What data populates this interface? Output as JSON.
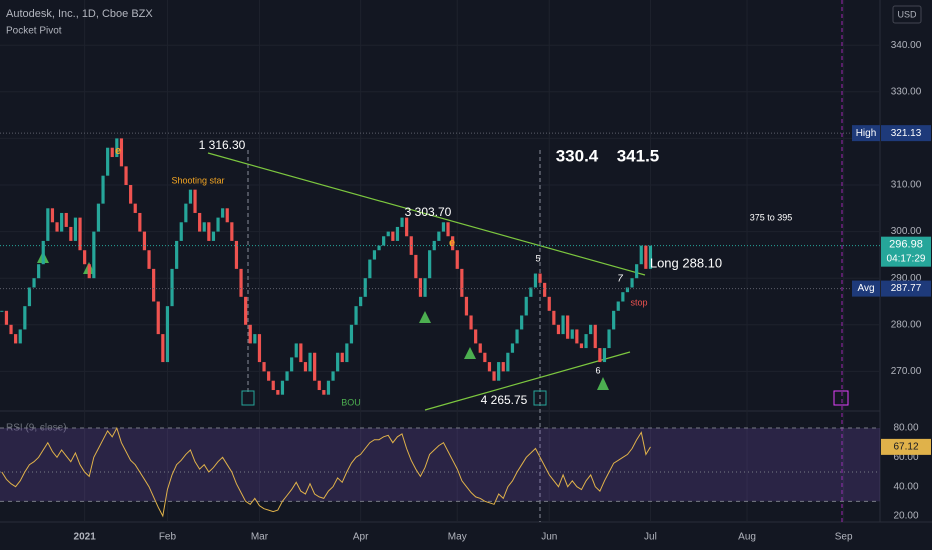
{
  "chart_data": [
    {
      "type": "candlestick",
      "title": "Autodesk, Inc., 1D, Cboe BZX",
      "subtitle": "Pocket Pivot",
      "currency": "USD",
      "close": [
        283,
        280,
        278,
        276,
        279,
        284,
        288,
        290,
        293,
        298,
        305,
        302,
        300,
        304,
        301,
        298,
        303,
        296,
        293,
        290,
        300,
        306,
        312,
        318,
        316,
        320,
        314,
        310,
        306,
        304,
        300,
        296,
        292,
        285,
        278,
        272,
        284,
        292,
        298,
        302,
        306,
        309,
        304,
        300,
        302,
        298,
        300,
        303,
        305,
        302,
        298,
        292,
        286,
        280,
        276,
        278,
        272,
        270,
        268,
        266,
        265,
        268,
        270,
        273,
        276,
        272,
        270,
        274,
        268,
        266,
        265,
        268,
        270,
        274,
        272,
        276,
        280,
        284,
        286,
        290,
        294,
        296,
        297,
        299,
        300,
        298,
        301,
        303,
        299,
        295,
        290,
        286,
        290,
        296,
        298,
        300,
        302,
        299,
        296,
        292,
        286,
        282,
        279,
        276,
        274,
        272,
        270,
        268,
        272,
        270,
        274,
        276,
        279,
        282,
        286,
        288,
        291,
        289,
        286,
        283,
        280,
        278,
        282,
        277,
        279,
        276,
        275,
        278,
        280,
        275,
        272,
        275,
        279,
        283,
        285,
        287,
        288,
        290,
        293,
        297,
        292,
        296.98
      ],
      "up_color": "#26a69a",
      "down_color": "#ef5350",
      "xlim": [
        -0.4,
        190.9
      ],
      "xticks": [
        {
          "value": 18,
          "label": "2021"
        },
        {
          "value": 36,
          "label": "Feb"
        },
        {
          "value": 56,
          "label": "Mar"
        },
        {
          "value": 78,
          "label": "Apr"
        },
        {
          "value": 99,
          "label": "May"
        },
        {
          "value": 119,
          "label": "Jun"
        },
        {
          "value": 141,
          "label": "Jul"
        },
        {
          "value": 162,
          "label": "Aug"
        },
        {
          "value": 183,
          "label": "Sep"
        }
      ],
      "ylim": [
        261.5,
        349.7
      ],
      "yticks": [
        {
          "value": 270,
          "label": "270.00"
        },
        {
          "value": 280,
          "label": "280.00"
        },
        {
          "value": 290,
          "label": "290.00"
        },
        {
          "value": 300,
          "label": "300.00"
        },
        {
          "value": 310,
          "label": "310.00"
        },
        {
          "value": 320,
          "label": "320.00"
        },
        {
          "value": 330,
          "label": "330.00"
        },
        {
          "value": 340,
          "label": "340.00"
        }
      ],
      "price_tags": [
        {
          "label": "High",
          "value": 321.13
        },
        {
          "label": "Avg",
          "value": 287.77
        }
      ],
      "countdown": "04:17:29",
      "annotations": [
        "1 316.30",
        "Shooting star",
        "3  303.70",
        "330.4",
        "341.5",
        "375 to 395",
        "5",
        "Long 288.10",
        "7",
        "stop",
        "6",
        "4  265.75",
        "e",
        "e",
        "BOU"
      ]
    },
    {
      "type": "line",
      "title": "RSI (9, close)",
      "color": "#e0b24a",
      "values": [
        50,
        45,
        42,
        40,
        44,
        50,
        55,
        57,
        60,
        65,
        70,
        64,
        60,
        65,
        61,
        57,
        63,
        55,
        50,
        47,
        60,
        66,
        72,
        78,
        74,
        80,
        70,
        64,
        58,
        55,
        50,
        45,
        40,
        33,
        26,
        20,
        38,
        48,
        55,
        58,
        62,
        65,
        57,
        52,
        55,
        50,
        53,
        57,
        60,
        55,
        50,
        42,
        36,
        30,
        28,
        32,
        27,
        25,
        24,
        23,
        24,
        30,
        34,
        38,
        43,
        37,
        35,
        42,
        35,
        33,
        32,
        37,
        40,
        46,
        43,
        50,
        56,
        60,
        62,
        66,
        70,
        72,
        72,
        74,
        75,
        70,
        74,
        76,
        66,
        58,
        52,
        47,
        53,
        62,
        65,
        68,
        70,
        64,
        58,
        52,
        44,
        40,
        36,
        33,
        32,
        30,
        29,
        28,
        35,
        32,
        40,
        44,
        50,
        55,
        60,
        63,
        66,
        60,
        54,
        48,
        44,
        40,
        48,
        40,
        44,
        40,
        38,
        44,
        48,
        40,
        37,
        44,
        50,
        56,
        58,
        60,
        62,
        66,
        72,
        77,
        62,
        67.12
      ],
      "ylim": [
        15.9,
        90.9
      ],
      "yticks": [
        {
          "value": 20,
          "label": "20.00"
        },
        {
          "value": 40,
          "label": "40.00"
        },
        {
          "value": 60,
          "label": "60.00"
        },
        {
          "value": 80,
          "label": "80.00"
        }
      ],
      "levels": [
        80,
        50,
        30
      ]
    }
  ]
}
